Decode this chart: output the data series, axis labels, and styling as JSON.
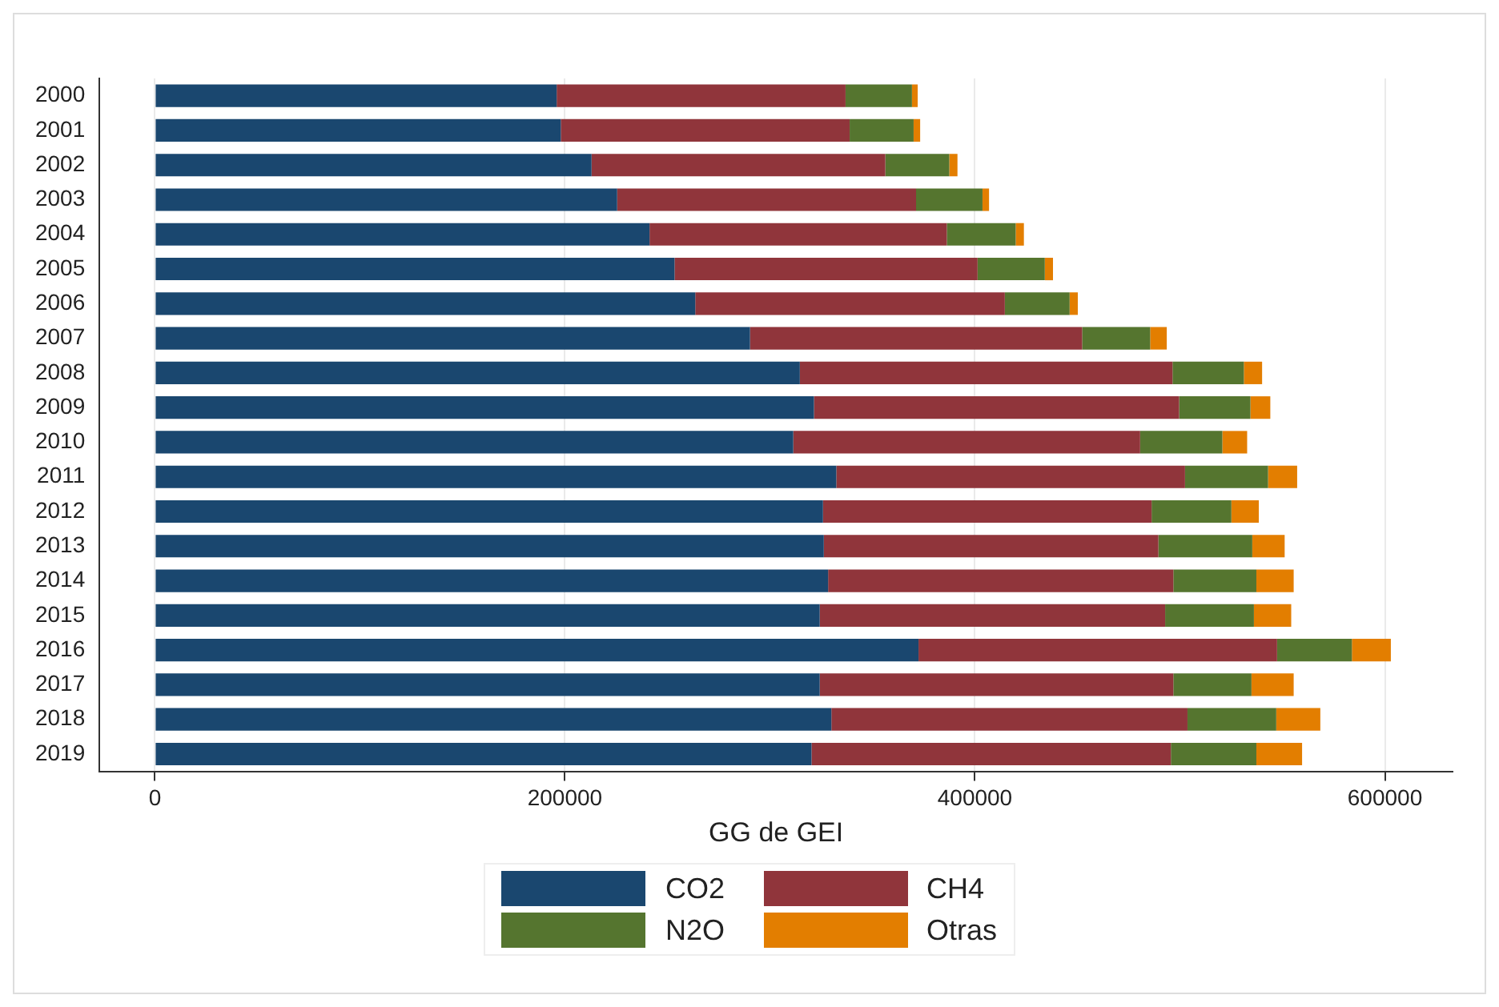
{
  "chart_data": {
    "type": "bar",
    "orientation": "horizontal",
    "stacked": true,
    "xlabel": "GG de GEI",
    "categories": [
      "2000",
      "2001",
      "2002",
      "2003",
      "2004",
      "2005",
      "2006",
      "2007",
      "2008",
      "2009",
      "2010",
      "2011",
      "2012",
      "2013",
      "2014",
      "2015",
      "2016",
      "2017",
      "2018",
      "2019"
    ],
    "series": [
      {
        "name": "CO2",
        "color": "#1a476f",
        "values": [
          196000,
          198000,
          213000,
          225500,
          241300,
          253500,
          263600,
          290300,
          314600,
          321500,
          311400,
          332400,
          325900,
          326300,
          328400,
          324300,
          372500,
          324300,
          330000,
          320300
        ]
      },
      {
        "name": "CH4",
        "color": "#90353b",
        "values": [
          140900,
          140900,
          143300,
          145800,
          145000,
          147800,
          151000,
          162000,
          181800,
          178100,
          169200,
          170100,
          160300,
          163200,
          168400,
          168500,
          174900,
          172500,
          173700,
          175300
        ]
      },
      {
        "name": "N2O",
        "color": "#55752f",
        "values": [
          32400,
          31200,
          31200,
          32400,
          33600,
          32800,
          31600,
          33200,
          34800,
          34800,
          40100,
          40500,
          38900,
          45800,
          40500,
          43300,
          36500,
          38100,
          43300,
          41700
        ]
      },
      {
        "name": "Otras",
        "color": "#e37e00",
        "values": [
          2800,
          3200,
          4000,
          3200,
          4000,
          4000,
          4000,
          8100,
          8900,
          9700,
          12100,
          14200,
          13400,
          15800,
          18200,
          18200,
          19000,
          20600,
          21500,
          22300
        ]
      }
    ],
    "xlim": [
      -27000,
      633000
    ],
    "xticks": [
      0,
      200000,
      400000,
      600000
    ],
    "grid": "x",
    "legend": "bottom"
  }
}
